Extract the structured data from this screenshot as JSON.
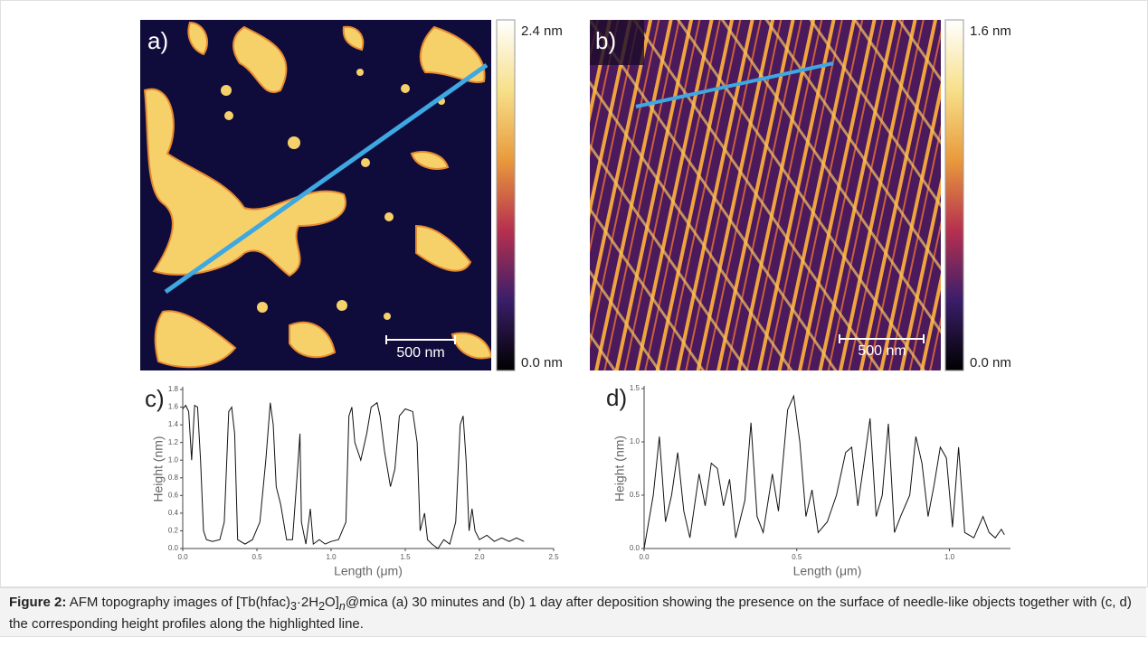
{
  "images": [
    {
      "label": "a)",
      "scalebar": "500 nm",
      "colorbar": {
        "max": "2.4 nm",
        "min": "0.0 nm"
      }
    },
    {
      "label": "b)",
      "scalebar": "500 nm",
      "colorbar": {
        "max": "1.6 nm",
        "min": "0.0 nm"
      }
    }
  ],
  "chart_data": [
    {
      "type": "line",
      "label": "c)",
      "xlabel": "Length (μm)",
      "ylabel": "Height (nm)",
      "x": [
        0,
        0.02,
        0.04,
        0.06,
        0.08,
        0.1,
        0.12,
        0.14,
        0.16,
        0.2,
        0.25,
        0.28,
        0.31,
        0.33,
        0.35,
        0.37,
        0.42,
        0.47,
        0.52,
        0.56,
        0.59,
        0.61,
        0.63,
        0.66,
        0.7,
        0.74,
        0.77,
        0.79,
        0.8,
        0.83,
        0.86,
        0.88,
        0.92,
        0.96,
        1.0,
        1.05,
        1.1,
        1.12,
        1.14,
        1.16,
        1.2,
        1.24,
        1.27,
        1.31,
        1.33,
        1.36,
        1.4,
        1.43,
        1.46,
        1.5,
        1.55,
        1.58,
        1.6,
        1.63,
        1.65,
        1.68,
        1.72,
        1.76,
        1.8,
        1.84,
        1.87,
        1.89,
        1.91,
        1.93,
        1.95,
        1.97,
        2.0,
        2.05,
        2.1,
        2.15,
        2.2,
        2.25,
        2.3
      ],
      "series": [
        {
          "color": "#111111",
          "values": [
            1.58,
            1.62,
            1.55,
            1.0,
            1.62,
            1.6,
            1.0,
            0.2,
            0.1,
            0.08,
            0.1,
            0.3,
            1.55,
            1.6,
            1.3,
            0.1,
            0.05,
            0.1,
            0.3,
            1.0,
            1.65,
            1.4,
            0.7,
            0.5,
            0.1,
            0.1,
            0.8,
            1.3,
            0.3,
            0.05,
            0.45,
            0.05,
            0.1,
            0.05,
            0.08,
            0.1,
            0.3,
            1.5,
            1.6,
            1.2,
            1.0,
            1.3,
            1.6,
            1.65,
            1.5,
            1.1,
            0.7,
            0.9,
            1.5,
            1.58,
            1.55,
            1.2,
            0.2,
            0.4,
            0.1,
            0.05,
            0.0,
            0.1,
            0.05,
            0.3,
            1.4,
            1.5,
            1.0,
            0.2,
            0.45,
            0.2,
            0.1,
            0.15,
            0.08,
            0.12,
            0.08,
            0.12,
            0.08
          ]
        }
      ],
      "xlim": [
        0,
        2.5
      ],
      "xticks": [
        {
          "value": 0,
          "label": "0.0"
        },
        0.5,
        {
          "value": 1,
          "label": "1.0"
        },
        1.5,
        {
          "value": 2,
          "label": "2.0"
        },
        2.5
      ],
      "ylim": [
        0,
        1.8
      ],
      "yticks": [
        {
          "value": 0,
          "label": "0.0"
        },
        0.2,
        0.4,
        0.6,
        0.8,
        {
          "value": 1,
          "label": "1.0"
        },
        1.2,
        1.4,
        1.6,
        1.8
      ]
    },
    {
      "type": "line",
      "label": "d)",
      "xlabel": "Length (μm)",
      "ylabel": "Height (nm)",
      "x": [
        0,
        0.03,
        0.05,
        0.07,
        0.09,
        0.11,
        0.13,
        0.15,
        0.18,
        0.2,
        0.22,
        0.24,
        0.26,
        0.28,
        0.3,
        0.33,
        0.35,
        0.37,
        0.39,
        0.42,
        0.44,
        0.47,
        0.49,
        0.51,
        0.53,
        0.55,
        0.57,
        0.6,
        0.63,
        0.66,
        0.68,
        0.7,
        0.72,
        0.74,
        0.76,
        0.78,
        0.8,
        0.82,
        0.84,
        0.87,
        0.89,
        0.91,
        0.93,
        0.95,
        0.97,
        0.99,
        1.01,
        1.03,
        1.05,
        1.08,
        1.11,
        1.13,
        1.15,
        1.17,
        1.18
      ],
      "series": [
        {
          "color": "#111111",
          "values": [
            0,
            0.5,
            1.05,
            0.25,
            0.5,
            0.9,
            0.35,
            0.1,
            0.7,
            0.4,
            0.8,
            0.75,
            0.4,
            0.65,
            0.1,
            0.45,
            1.18,
            0.3,
            0.15,
            0.7,
            0.35,
            1.3,
            1.43,
            1.0,
            0.3,
            0.55,
            0.15,
            0.25,
            0.5,
            0.9,
            0.95,
            0.4,
            0.8,
            1.22,
            0.3,
            0.5,
            1.17,
            0.15,
            0.3,
            0.5,
            1.05,
            0.8,
            0.3,
            0.6,
            0.95,
            0.85,
            0.2,
            0.95,
            0.15,
            0.1,
            0.3,
            0.15,
            0.1,
            0.18,
            0.13
          ]
        }
      ],
      "xlim": [
        0,
        1.2
      ],
      "xticks": [
        {
          "value": 0,
          "label": "0.0"
        },
        0.5,
        {
          "value": 1,
          "label": "1.0"
        }
      ],
      "ylim": [
        0,
        1.5
      ],
      "yticks": [
        {
          "value": 0,
          "label": "0.0"
        },
        0.5,
        {
          "value": 1,
          "label": "1.0"
        },
        1.5
      ]
    }
  ],
  "caption": {
    "label": "Figure 2:",
    "parts": [
      "AFM topography images of [Tb(hfac)",
      "3",
      "·2H",
      "2",
      "O]",
      "n",
      "@mica (a) 30 minutes and (b) 1 day after deposition showing the presence on the surface of needle-like objects together with (c, d) the corresponding height profiles along the highlighted line."
    ]
  }
}
